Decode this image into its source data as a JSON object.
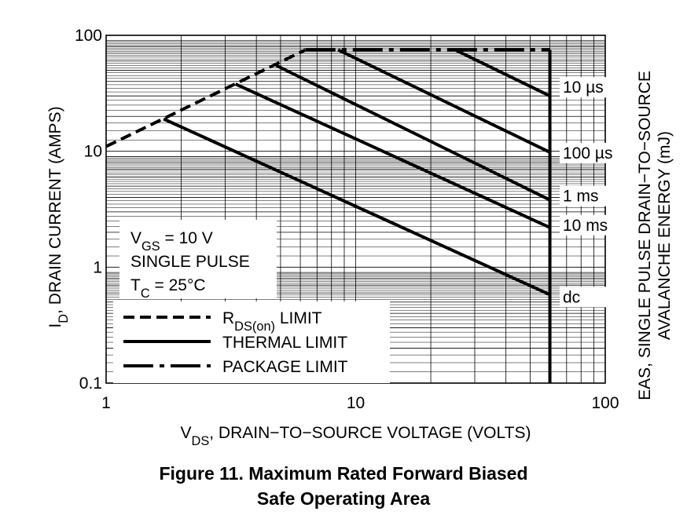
{
  "chart_data": {
    "type": "line",
    "x_scale": "log",
    "y_scale": "log",
    "xlim": [
      1,
      100
    ],
    "ylim": [
      0.1,
      100
    ],
    "x_ticks": [
      "1",
      "10",
      "100"
    ],
    "y_ticks": [
      "0.1",
      "1",
      "10",
      "100"
    ],
    "grid": true,
    "xlabel": {
      "main": "V",
      "sub": "DS",
      "rest": ", DRAIN−TO−SOURCE VOLTAGE (VOLTS)"
    },
    "ylabel": {
      "main": "I",
      "sub": "D",
      "rest": ", DRAIN CURRENT (AMPS)"
    },
    "y2label": [
      "EAS, SINGLE PULSE DRAIN−TO−SOURCE",
      "AVALANCHE ENERGY (mJ)"
    ],
    "conditions": [
      {
        "main": "V",
        "sub": "GS",
        "rest": " = 10 V"
      },
      {
        "main": "SINGLE PULSE",
        "sub": "",
        "rest": ""
      },
      {
        "main": "T",
        "sub": "C",
        "rest": " = 25°C"
      }
    ],
    "legend": {
      "placement": "bottom-left",
      "entries": [
        {
          "style": "dashed",
          "main": "R",
          "sub": "DS(on)",
          "rest": " LIMIT"
        },
        {
          "style": "solid",
          "main": "THERMAL LIMIT",
          "sub": "",
          "rest": ""
        },
        {
          "style": "dashdot",
          "main": "PACKAGE LIMIT",
          "sub": "",
          "rest": ""
        }
      ]
    },
    "series": [
      {
        "name": "RDS(on) LIMIT",
        "style": "dashed",
        "x": [
          1,
          6.3
        ],
        "y": [
          11,
          75
        ]
      },
      {
        "name": "PACKAGE LIMIT",
        "style": "dashdot",
        "x": [
          6.3,
          60
        ],
        "y": [
          75,
          75
        ]
      },
      {
        "name": "10 µs",
        "style": "solid",
        "x": [
          25,
          60
        ],
        "y": [
          75,
          30
        ]
      },
      {
        "name": "100 µs",
        "style": "solid",
        "x": [
          8.5,
          60
        ],
        "y": [
          75,
          9.8
        ]
      },
      {
        "name": "1 ms",
        "style": "solid",
        "x": [
          4.8,
          60
        ],
        "y": [
          55,
          3.8
        ]
      },
      {
        "name": "10 ms",
        "style": "solid",
        "x": [
          3.3,
          60
        ],
        "y": [
          38,
          2.2
        ]
      },
      {
        "name": "dc",
        "style": "solid",
        "x": [
          1.7,
          60
        ],
        "y": [
          19,
          0.58
        ]
      },
      {
        "name": "voltage limit",
        "style": "solid",
        "x": [
          60,
          60
        ],
        "y": [
          75,
          0.1
        ]
      }
    ],
    "curve_labels": [
      "10 µs",
      "100 µs",
      "1 ms",
      "10 ms",
      "dc"
    ]
  },
  "caption": {
    "line1": "Figure 11. Maximum Rated Forward Biased",
    "line2": "Safe Operating Area"
  }
}
